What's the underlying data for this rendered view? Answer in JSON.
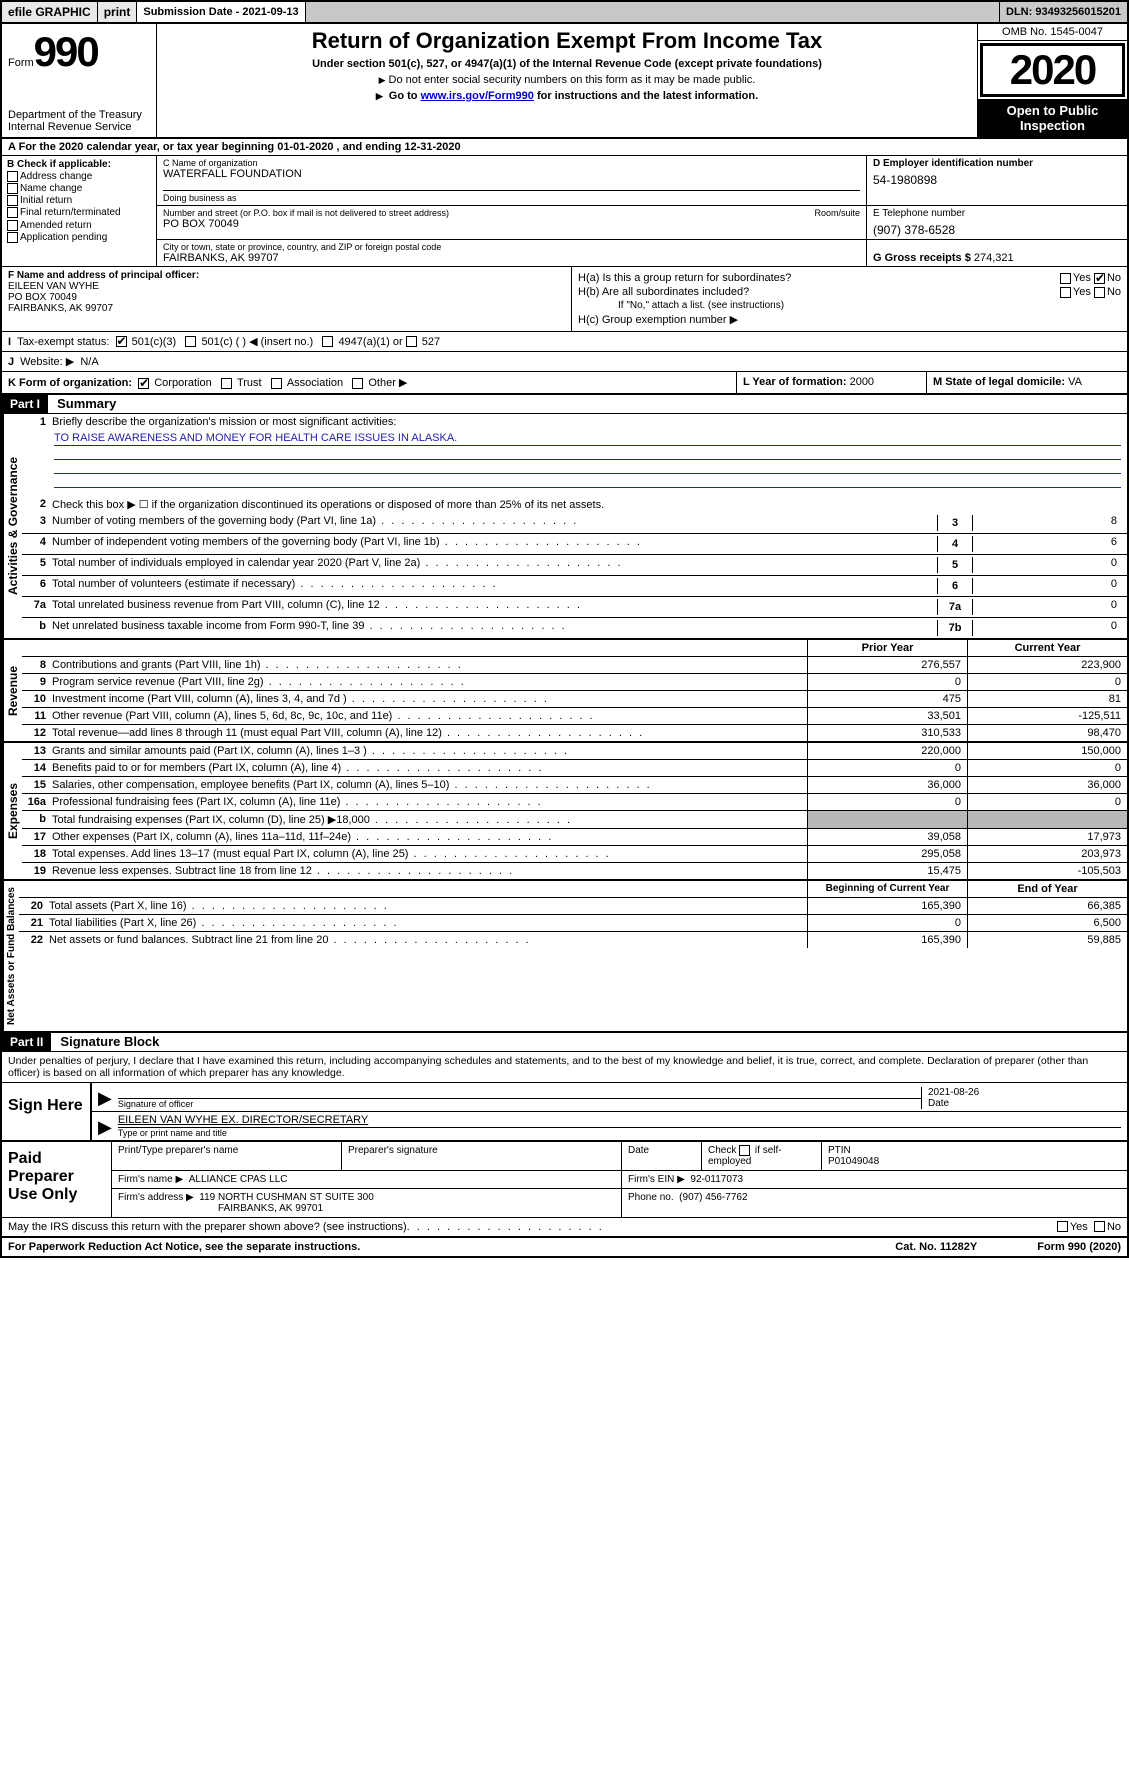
{
  "topbar": {
    "efile_label": "efile GRAPHIC",
    "print_label": "print",
    "submission_label": "Submission Date - 2021-09-13",
    "dln": "DLN: 93493256015201"
  },
  "header": {
    "form_word": "Form",
    "form_number": "990",
    "dept1": "Department of the Treasury",
    "dept2": "Internal Revenue Service",
    "title": "Return of Organization Exempt From Income Tax",
    "subtitle": "Under section 501(c), 527, or 4947(a)(1) of the Internal Revenue Code (except private foundations)",
    "note1": "Do not enter social security numbers on this form as it may be made public.",
    "note2_pre": "Go to ",
    "note2_link": "www.irs.gov/Form990",
    "note2_post": " for instructions and the latest information.",
    "omb": "OMB No. 1545-0047",
    "year": "2020",
    "inspect": "Open to Public Inspection"
  },
  "period": {
    "text": "For the 2020 calendar year, or tax year beginning 01-01-2020   , and ending 12-31-2020"
  },
  "sectionB": {
    "label": "B Check if applicable:",
    "opts": [
      "Address change",
      "Name change",
      "Initial return",
      "Final return/terminated",
      "Amended return",
      "Application pending"
    ]
  },
  "sectionC": {
    "name_label": "C Name of organization",
    "name": "WATERFALL FOUNDATION",
    "dba_label": "Doing business as",
    "dba": "",
    "addr_label": "Number and street (or P.O. box if mail is not delivered to street address)",
    "room_label": "Room/suite",
    "addr": "PO BOX 70049",
    "city_label": "City or town, state or province, country, and ZIP or foreign postal code",
    "city": "FAIRBANKS, AK  99707"
  },
  "sectionD": {
    "label": "D Employer identification number",
    "val": "54-1980898"
  },
  "sectionE": {
    "label": "E Telephone number",
    "val": "(907) 378-6528"
  },
  "sectionG": {
    "label": "G Gross receipts $",
    "val": "274,321"
  },
  "sectionF": {
    "label": "F  Name and address of principal officer:",
    "l1": "EILEEN VAN WYHE",
    "l2": "PO BOX 70049",
    "l3": "FAIRBANKS, AK  99707"
  },
  "sectionH": {
    "ha": "H(a)  Is this a group return for subordinates?",
    "hb": "H(b)  Are all subordinates included?",
    "hb_note": "If \"No,\" attach a list. (see instructions)",
    "hc": "H(c)  Group exemption number ▶",
    "yes": "Yes",
    "no": "No"
  },
  "rowI": {
    "lead": "I",
    "label": "Tax-exempt status:",
    "c1": "501(c)(3)",
    "c2": "501(c) (   ) ◀ (insert no.)",
    "c3": "4947(a)(1) or",
    "c4": "527"
  },
  "rowJ": {
    "lead": "J",
    "label": "Website: ▶",
    "val": "N/A"
  },
  "rowK": {
    "label": "K Form of organization:",
    "c1": "Corporation",
    "c2": "Trust",
    "c3": "Association",
    "c4": "Other ▶"
  },
  "rowL": {
    "label": "L Year of formation:",
    "val": "2000"
  },
  "rowM": {
    "label": "M State of legal domicile:",
    "val": "VA"
  },
  "part1": {
    "hdr": "Part I",
    "title": "Summary"
  },
  "summary": {
    "vlab1": "Activities & Governance",
    "q1": "Briefly describe the organization's mission or most significant activities:",
    "mission": "TO RAISE AWARENESS AND MONEY FOR HEALTH CARE ISSUES IN ALASKA.",
    "q2": "Check this box ▶ ☐  if the organization discontinued its operations or disposed of more than 25% of its net assets.",
    "lines_ag": [
      {
        "n": "3",
        "t": "Number of voting members of the governing body (Part VI, line 1a)",
        "box": "3",
        "v": "8"
      },
      {
        "n": "4",
        "t": "Number of independent voting members of the governing body (Part VI, line 1b)",
        "box": "4",
        "v": "6"
      },
      {
        "n": "5",
        "t": "Total number of individuals employed in calendar year 2020 (Part V, line 2a)",
        "box": "5",
        "v": "0"
      },
      {
        "n": "6",
        "t": "Total number of volunteers (estimate if necessary)",
        "box": "6",
        "v": "0"
      },
      {
        "n": "7a",
        "t": "Total unrelated business revenue from Part VIII, column (C), line 12",
        "box": "7a",
        "v": "0"
      },
      {
        "n": "b",
        "t": "Net unrelated business taxable income from Form 990-T, line 39",
        "box": "7b",
        "v": "0"
      }
    ],
    "vlab_rev": "Revenue",
    "hdr_prior": "Prior Year",
    "hdr_curr": "Current Year",
    "rev": [
      {
        "n": "8",
        "t": "Contributions and grants (Part VIII, line 1h)",
        "p": "276,557",
        "c": "223,900"
      },
      {
        "n": "9",
        "t": "Program service revenue (Part VIII, line 2g)",
        "p": "0",
        "c": "0"
      },
      {
        "n": "10",
        "t": "Investment income (Part VIII, column (A), lines 3, 4, and 7d )",
        "p": "475",
        "c": "81"
      },
      {
        "n": "11",
        "t": "Other revenue (Part VIII, column (A), lines 5, 6d, 8c, 9c, 10c, and 11e)",
        "p": "33,501",
        "c": "-125,511"
      },
      {
        "n": "12",
        "t": "Total revenue—add lines 8 through 11 (must equal Part VIII, column (A), line 12)",
        "p": "310,533",
        "c": "98,470"
      }
    ],
    "vlab_exp": "Expenses",
    "exp": [
      {
        "n": "13",
        "t": "Grants and similar amounts paid (Part IX, column (A), lines 1–3 )",
        "p": "220,000",
        "c": "150,000"
      },
      {
        "n": "14",
        "t": "Benefits paid to or for members (Part IX, column (A), line 4)",
        "p": "0",
        "c": "0"
      },
      {
        "n": "15",
        "t": "Salaries, other compensation, employee benefits (Part IX, column (A), lines 5–10)",
        "p": "36,000",
        "c": "36,000"
      },
      {
        "n": "16a",
        "t": "Professional fundraising fees (Part IX, column (A), line 11e)",
        "p": "0",
        "c": "0"
      },
      {
        "n": "b",
        "t": "Total fundraising expenses (Part IX, column (D), line 25) ▶18,000",
        "p": "",
        "c": "",
        "shade": true
      },
      {
        "n": "17",
        "t": "Other expenses (Part IX, column (A), lines 11a–11d, 11f–24e)",
        "p": "39,058",
        "c": "17,973"
      },
      {
        "n": "18",
        "t": "Total expenses. Add lines 13–17 (must equal Part IX, column (A), line 25)",
        "p": "295,058",
        "c": "203,973"
      },
      {
        "n": "19",
        "t": "Revenue less expenses. Subtract line 18 from line 12",
        "p": "15,475",
        "c": "-105,503"
      }
    ],
    "vlab_net": "Net Assets or Fund Balances",
    "hdr_beg": "Beginning of Current Year",
    "hdr_end": "End of Year",
    "net": [
      {
        "n": "20",
        "t": "Total assets (Part X, line 16)",
        "p": "165,390",
        "c": "66,385"
      },
      {
        "n": "21",
        "t": "Total liabilities (Part X, line 26)",
        "p": "0",
        "c": "6,500"
      },
      {
        "n": "22",
        "t": "Net assets or fund balances. Subtract line 21 from line 20",
        "p": "165,390",
        "c": "59,885"
      }
    ]
  },
  "part2": {
    "hdr": "Part II",
    "title": "Signature Block"
  },
  "sig": {
    "decl": "Under penalties of perjury, I declare that I have examined this return, including accompanying schedules and statements, and to the best of my knowledge and belief, it is true, correct, and complete. Declaration of preparer (other than officer) is based on all information of which preparer has any knowledge.",
    "sign_here": "Sign Here",
    "sig_of_officer": "Signature of officer",
    "date_label": "Date",
    "date": "2021-08-26",
    "officer_name": "EILEEN VAN WYHE  EX. DIRECTOR/SECRETARY",
    "type_name_label": "Type or print name and title"
  },
  "paid": {
    "label": "Paid Preparer Use Only",
    "h1": "Print/Type preparer's name",
    "h2": "Preparer's signature",
    "h3": "Date",
    "h4a": "Check",
    "h4b": "if self-employed",
    "h5": "PTIN",
    "ptin": "P01049048",
    "firm_label": "Firm's name    ▶",
    "firm": "ALLIANCE CPAS LLC",
    "ein_label": "Firm's EIN ▶",
    "ein": "92-0117073",
    "addr_label": "Firm's address ▶",
    "addr1": "119 NORTH CUSHMAN ST SUITE 300",
    "addr2": "FAIRBANKS, AK  99701",
    "phone_label": "Phone no.",
    "phone": "(907) 456-7762"
  },
  "discuss": {
    "q": "May the IRS discuss this return with the preparer shown above? (see instructions)",
    "yes": "Yes",
    "no": "No"
  },
  "footer": {
    "left": "For Paperwork Reduction Act Notice, see the separate instructions.",
    "mid": "Cat. No. 11282Y",
    "right": "Form 990 (2020)"
  },
  "colors": {
    "link": "#0000cc",
    "grayfill": "#c8c8c8",
    "shade": "#b8b8b8",
    "ruleblue": "#2222aa"
  }
}
